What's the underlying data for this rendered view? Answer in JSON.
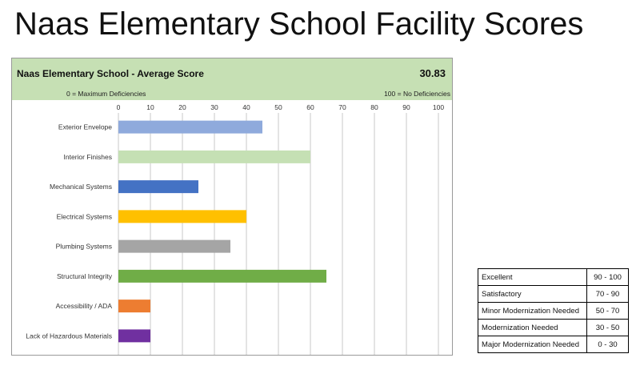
{
  "page_title": "Naas Elementary School Facility Scores",
  "header": {
    "title": "Naas Elementary School - Average Score",
    "score": "30.83",
    "left_note": "0 = Maximum Deficiencies",
    "right_note": "100 = No Deficiencies"
  },
  "chart_data": {
    "type": "bar",
    "orientation": "horizontal",
    "title": "Naas Elementary School - Average Score",
    "categories": [
      "Exterior Envelope",
      "Interior Finishes",
      "Mechanical Systems",
      "Electrical Systems",
      "Plumbing Systems",
      "Structural Integrity",
      "Accessibility / ADA",
      "Lack of Hazardous Materials"
    ],
    "values": [
      45,
      60,
      25,
      40,
      35,
      65,
      10,
      10
    ],
    "colors": [
      "#8faadc",
      "#c5e0b4",
      "#4472c4",
      "#ffc000",
      "#a5a5a5",
      "#70ad47",
      "#ed7d31",
      "#7030a0"
    ],
    "xlim": [
      0,
      100
    ],
    "ticks": [
      0,
      10,
      20,
      30,
      40,
      50,
      60,
      70,
      80,
      90,
      100
    ],
    "xlabel": "",
    "ylabel": "",
    "grid": true
  },
  "legend": {
    "rows": [
      {
        "label": "Excellent",
        "range": "90 - 100"
      },
      {
        "label": "Satisfactory",
        "range": "70 - 90"
      },
      {
        "label": "Minor Modernization Needed",
        "range": "50 - 70"
      },
      {
        "label": "Modernization Needed",
        "range": "30 - 50"
      },
      {
        "label": "Major Modernization Needed",
        "range": "0 - 30"
      }
    ]
  }
}
